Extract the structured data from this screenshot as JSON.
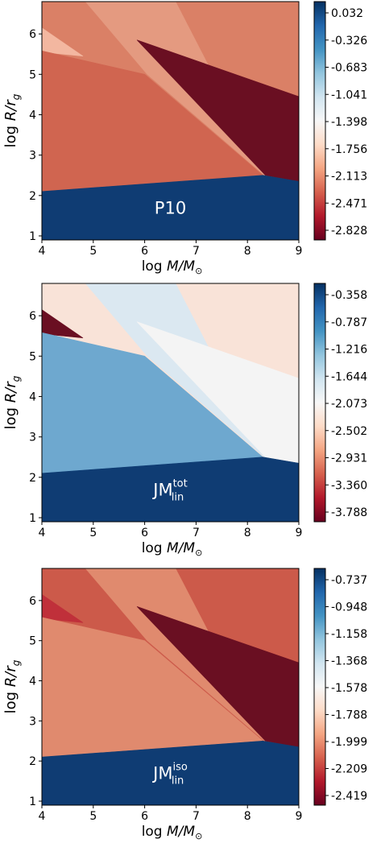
{
  "chart_data": [
    {
      "type": "heatmap",
      "label_main": "P10",
      "label_sup": "",
      "label_sub": "",
      "xlabel": "log",
      "xlabel_var": "M/M",
      "ylabel": "log",
      "ylabel_var": "R/r",
      "ylabel_sub": "g",
      "xlim": [
        4,
        9
      ],
      "ylim": [
        0.9,
        6.8
      ],
      "xticks": [
        "4",
        "5",
        "6",
        "7",
        "8",
        "9"
      ],
      "yticks": [
        "1",
        "2",
        "3",
        "4",
        "5",
        "6"
      ],
      "colorbar_ticks": [
        "0.032",
        "-0.326",
        "-0.683",
        "-1.041",
        "-1.398",
        "-1.756",
        "-2.113",
        "-2.471",
        "-2.828"
      ],
      "region_colors": {
        "background": "#da8066",
        "left_band": "#d06550",
        "upper_left_corner": "#f3b7a0",
        "wedge": "#6a0f22",
        "bottom": "#0f3c73",
        "ridge": "#e49a80"
      }
    },
    {
      "type": "heatmap",
      "label_main": "JM",
      "label_sup": "tot",
      "label_sub": "lin",
      "xlabel": "log",
      "xlabel_var": "M/M",
      "ylabel": "log",
      "ylabel_var": "R/r",
      "ylabel_sub": "g",
      "xlim": [
        4,
        9
      ],
      "ylim": [
        0.9,
        6.8
      ],
      "xticks": [
        "4",
        "5",
        "6",
        "7",
        "8",
        "9"
      ],
      "yticks": [
        "1",
        "2",
        "3",
        "4",
        "5",
        "6"
      ],
      "colorbar_ticks": [
        "-0.358",
        "-0.787",
        "-1.216",
        "-1.644",
        "-2.073",
        "-2.502",
        "-2.931",
        "-3.360",
        "-3.788"
      ],
      "region_colors": {
        "background": "#f9e3d8",
        "left_band": "#6ea8cf",
        "upper_left_corner": "#6a0f22",
        "wedge": "#f4f4f4",
        "bottom": "#0f3c73",
        "ridge": "#dbe8f1"
      }
    },
    {
      "type": "heatmap",
      "label_main": "JM",
      "label_sup": "iso",
      "label_sub": "lin",
      "xlabel": "log",
      "xlabel_var": "M/M",
      "ylabel": "log",
      "ylabel_var": "R/r",
      "ylabel_sub": "g",
      "xlim": [
        4,
        9
      ],
      "ylim": [
        0.9,
        6.8
      ],
      "xticks": [
        "4",
        "5",
        "6",
        "7",
        "8",
        "9"
      ],
      "yticks": [
        "1",
        "2",
        "3",
        "4",
        "5",
        "6"
      ],
      "colorbar_ticks": [
        "-0.737",
        "-0.948",
        "-1.158",
        "-1.368",
        "-1.578",
        "-1.788",
        "-1.999",
        "-2.209",
        "-2.419"
      ],
      "region_colors": {
        "background": "#cc5a4a",
        "left_band": "#e08a6e",
        "upper_left_corner": "#c0303a",
        "wedge": "#6a0f22",
        "bottom": "#0f3c73",
        "ridge": "#e08a6e"
      }
    }
  ],
  "colorbar_gradient": [
    "#67001f",
    "#b2182b",
    "#d6604d",
    "#f4a582",
    "#fddbc7",
    "#f7f7f7",
    "#d1e5f0",
    "#92c5de",
    "#4393c3",
    "#2166ac",
    "#053061"
  ],
  "regions_data": {
    "background": [
      [
        4,
        6.8
      ],
      [
        9,
        6.8
      ],
      [
        9,
        0.9
      ],
      [
        4,
        0.9
      ]
    ],
    "upper_left_corner": [
      [
        4,
        6.15
      ],
      [
        4.8,
        5.45
      ],
      [
        4,
        5.55
      ]
    ],
    "left_band": [
      [
        4,
        5.58
      ],
      [
        6,
        5.0
      ],
      [
        8.3,
        2.5
      ],
      [
        4,
        2.1
      ]
    ],
    "ridge": [
      [
        4.85,
        6.8
      ],
      [
        6.05,
        5.0
      ],
      [
        8.35,
        2.48
      ],
      [
        6.6,
        6.8
      ]
    ],
    "wedge": [
      [
        5.85,
        5.85
      ],
      [
        9,
        4.45
      ],
      [
        9,
        2.35
      ],
      [
        8.35,
        2.5
      ]
    ],
    "bottom": [
      [
        4,
        2.1
      ],
      [
        8.3,
        2.5
      ],
      [
        9,
        2.35
      ],
      [
        9,
        0.9
      ],
      [
        4,
        0.9
      ]
    ]
  }
}
